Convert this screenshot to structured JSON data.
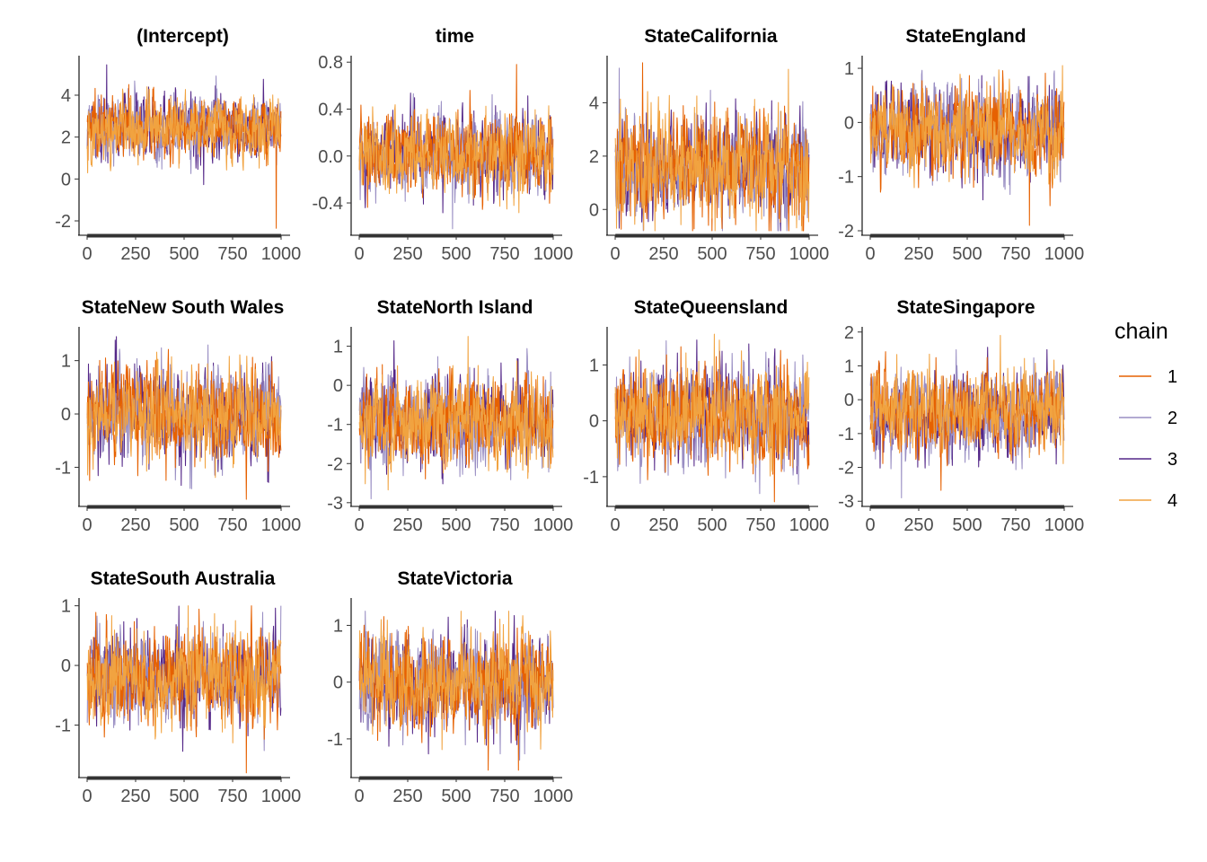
{
  "legend": {
    "title": "chain",
    "entries": [
      {
        "label": "1",
        "color": "#E66101"
      },
      {
        "label": "2",
        "color": "#998EC3"
      },
      {
        "label": "3",
        "color": "#542788"
      },
      {
        "label": "4",
        "color": "#F1A340"
      }
    ]
  },
  "chart_data": {
    "type": "line",
    "chart_kind": "MCMC trace plot (faceted)",
    "x_range": [
      1,
      1000
    ],
    "series_names": [
      "1",
      "2",
      "3",
      "4"
    ],
    "legend_position": "right",
    "grid": false,
    "panels": [
      {
        "title": "(Intercept)",
        "ylim": [
          -2.6,
          5.8
        ],
        "yticks": [
          -2,
          0,
          2,
          4
        ],
        "xticks": [
          0,
          250,
          500,
          750,
          1000
        ],
        "trace_summary": {
          "center": 2.5,
          "sd": 0.75,
          "min": -2.35,
          "max": 5.45,
          "extremes": [
            {
              "chain": "1",
              "iter": 975,
              "value": -2.35
            },
            {
              "chain": "3",
              "iter": 100,
              "value": 5.45
            }
          ]
        }
      },
      {
        "title": "time",
        "ylim": [
          -0.66,
          0.84
        ],
        "yticks": [
          -0.4,
          0.0,
          0.4,
          0.8
        ],
        "xticks": [
          0,
          250,
          500,
          750,
          1000
        ],
        "trace_summary": {
          "center": 0.02,
          "sd": 0.17,
          "min": -0.62,
          "max": 0.78,
          "extremes": [
            {
              "chain": "1",
              "iter": 810,
              "value": 0.78
            },
            {
              "chain": "2",
              "iter": 480,
              "value": -0.62
            }
          ]
        }
      },
      {
        "title": "StateCalifornia",
        "ylim": [
          -0.9,
          5.7
        ],
        "yticks": [
          0,
          2,
          4
        ],
        "xticks": [
          0,
          250,
          500,
          750,
          1000
        ],
        "trace_summary": {
          "center": 1.6,
          "sd": 0.95,
          "min": -0.8,
          "max": 5.5,
          "extremes": [
            {
              "chain": "1",
              "iter": 140,
              "value": 5.5
            },
            {
              "chain": "2",
              "iter": 20,
              "value": 5.3
            }
          ]
        }
      },
      {
        "title": "StateEngland",
        "ylim": [
          -2.05,
          1.2
        ],
        "yticks": [
          -2,
          -1,
          0,
          1
        ],
        "xticks": [
          0,
          250,
          500,
          750,
          1000
        ],
        "trace_summary": {
          "center": -0.15,
          "sd": 0.4,
          "min": -1.9,
          "max": 1.05,
          "extremes": [
            {
              "chain": "1",
              "iter": 820,
              "value": -1.9
            },
            {
              "chain": "4",
              "iter": 990,
              "value": 1.05
            }
          ]
        }
      },
      {
        "title": "StateNew South Wales",
        "ylim": [
          -1.7,
          1.6
        ],
        "yticks": [
          -1,
          0,
          1
        ],
        "xticks": [
          0,
          250,
          500,
          750,
          1000
        ],
        "trace_summary": {
          "center": 0.0,
          "sd": 0.42,
          "min": -1.6,
          "max": 1.45,
          "extremes": [
            {
              "chain": "1",
              "iter": 820,
              "value": -1.6
            },
            {
              "chain": "3",
              "iter": 150,
              "value": 1.45
            }
          ]
        }
      },
      {
        "title": "StateNorth Island",
        "ylim": [
          -3.05,
          1.45
        ],
        "yticks": [
          -3,
          -2,
          -1,
          0,
          1
        ],
        "xticks": [
          0,
          250,
          500,
          750,
          1000
        ],
        "trace_summary": {
          "center": -0.9,
          "sd": 0.55,
          "min": -2.9,
          "max": 1.25,
          "extremes": [
            {
              "chain": "4",
              "iter": 560,
              "value": 1.25
            },
            {
              "chain": "2",
              "iter": 60,
              "value": -2.9
            }
          ]
        }
      },
      {
        "title": "StateQueensland",
        "ylim": [
          -1.5,
          1.65
        ],
        "yticks": [
          -1,
          0,
          1
        ],
        "xticks": [
          0,
          250,
          500,
          750,
          1000
        ],
        "trace_summary": {
          "center": 0.1,
          "sd": 0.42,
          "min": -1.45,
          "max": 1.55,
          "extremes": [
            {
              "chain": "1",
              "iter": 820,
              "value": -1.45
            },
            {
              "chain": "4",
              "iter": 510,
              "value": 1.55
            }
          ]
        }
      },
      {
        "title": "StateSingapore",
        "ylim": [
          -3.1,
          2.1
        ],
        "yticks": [
          -3,
          -2,
          -1,
          0,
          1,
          2
        ],
        "xticks": [
          0,
          250,
          500,
          750,
          1000
        ],
        "trace_summary": {
          "center": -0.4,
          "sd": 0.6,
          "min": -2.9,
          "max": 1.9,
          "extremes": [
            {
              "chain": "2",
              "iter": 160,
              "value": -2.9
            },
            {
              "chain": "4",
              "iter": 670,
              "value": 1.9
            }
          ]
        }
      },
      {
        "title": "StateSouth Australia",
        "ylim": [
          -1.85,
          1.1
        ],
        "yticks": [
          -1,
          0,
          1
        ],
        "xticks": [
          0,
          250,
          500,
          750,
          1000
        ],
        "trace_summary": {
          "center": -0.2,
          "sd": 0.38,
          "min": -1.8,
          "max": 1.0,
          "extremes": [
            {
              "chain": "1",
              "iter": 820,
              "value": -1.8
            },
            {
              "chain": "4",
              "iter": 520,
              "value": 1.0
            }
          ]
        }
      },
      {
        "title": "StateVictoria",
        "ylim": [
          -1.65,
          1.45
        ],
        "yticks": [
          -1,
          0,
          1
        ],
        "xticks": [
          0,
          250,
          500,
          750,
          1000
        ],
        "trace_summary": {
          "center": 0.0,
          "sd": 0.42,
          "min": -1.55,
          "max": 1.25,
          "extremes": [
            {
              "chain": "1",
              "iter": 820,
              "value": -1.55
            },
            {
              "chain": "4",
              "iter": 770,
              "value": 1.25
            }
          ]
        }
      }
    ]
  }
}
